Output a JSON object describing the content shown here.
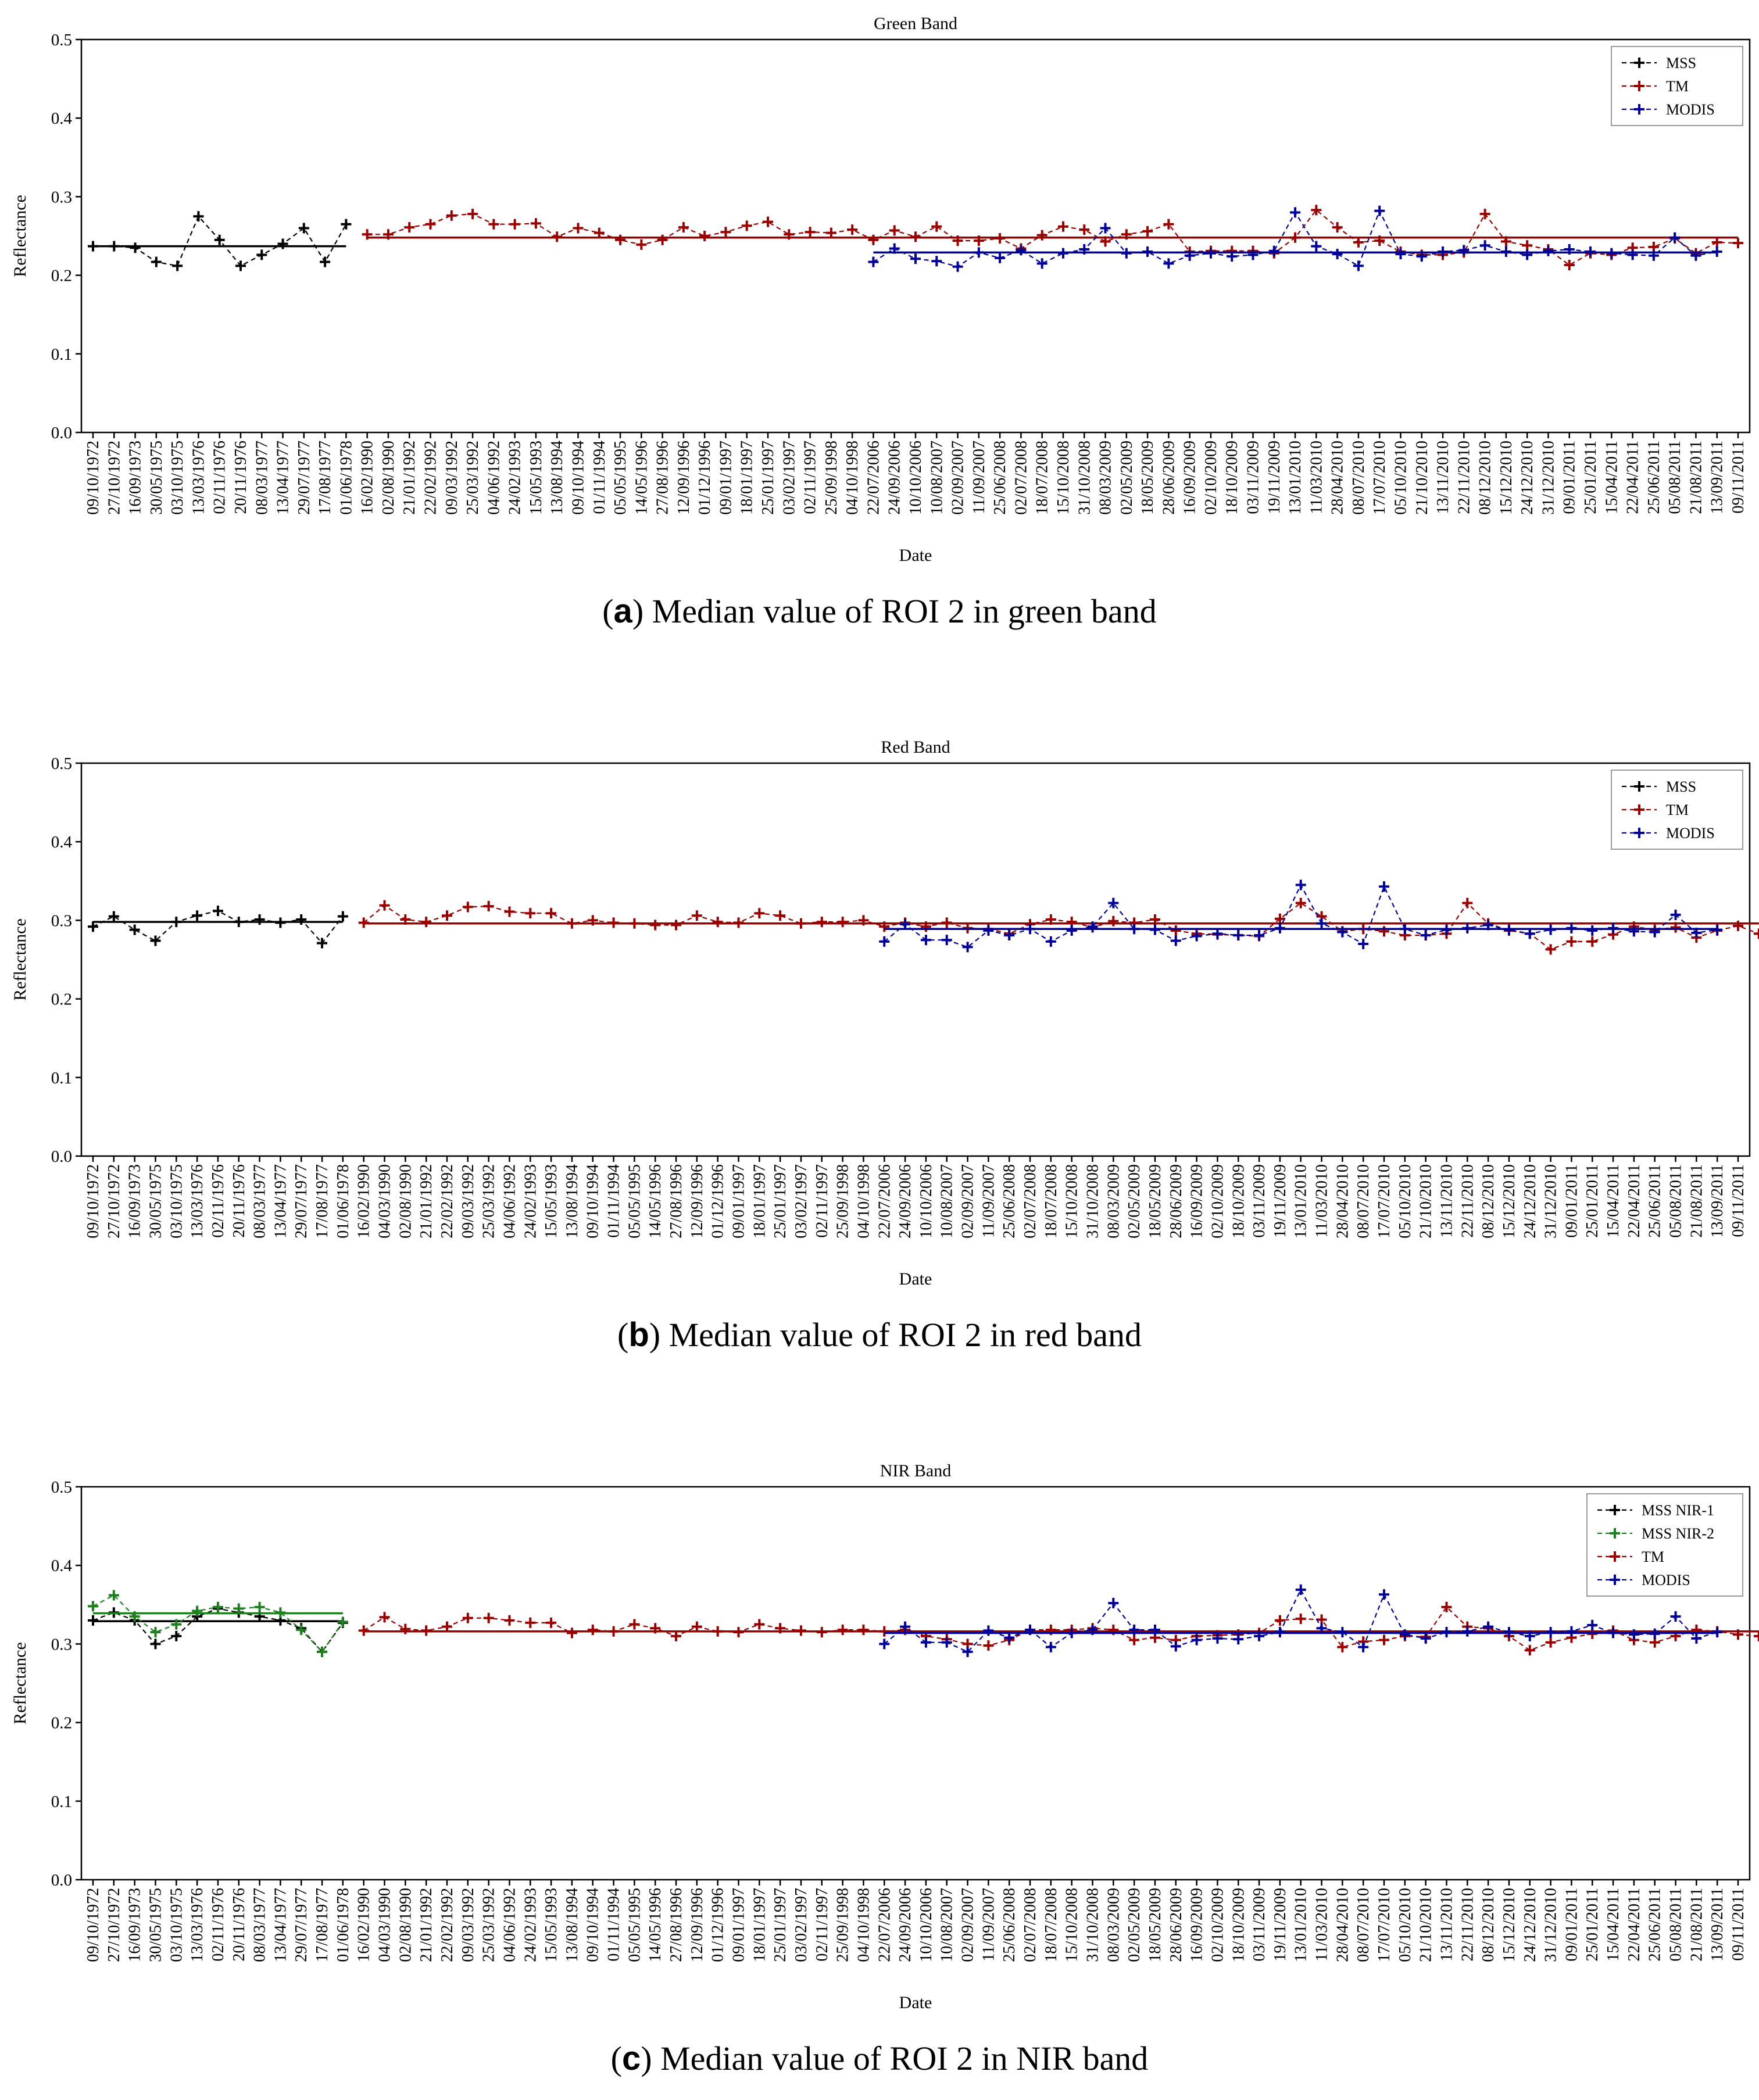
{
  "colors": {
    "mss": "#000000",
    "mss2": "#1f7f1f",
    "tm": "#990000",
    "modis": "#000099",
    "axis": "#000000"
  },
  "icons": {
    "marker": "plus-marker-icon"
  },
  "charts": [
    {
      "title": "Green Band",
      "caption_letter": "a",
      "caption_text": "Median value of ROI 2 in green band",
      "xlabel": "Date",
      "ylabel": "Reflectance",
      "legend": [
        "MSS",
        "TM",
        "MODIS"
      ]
    },
    {
      "title": "Red Band",
      "caption_letter": "b",
      "caption_text": "Median value of ROI 2 in red band",
      "xlabel": "Date",
      "ylabel": "Reflectance",
      "legend": [
        "MSS",
        "TM",
        "MODIS"
      ]
    },
    {
      "title": "NIR Band",
      "caption_letter": "c",
      "caption_text": "Median value of ROI 2 in NIR band",
      "xlabel": "Date",
      "ylabel": "Reflectance",
      "legend": [
        "MSS NIR-1",
        "MSS NIR-2",
        "TM",
        "MODIS"
      ]
    }
  ],
  "chart_data": [
    {
      "type": "line",
      "title": "Green Band",
      "xlabel": "Date",
      "ylabel": "Reflectance",
      "ylim": [
        0,
        0.5
      ],
      "yticks": [
        "0.0",
        "0.1",
        "0.2",
        "0.3",
        "0.4",
        "0.5"
      ],
      "legend_position": "top-right",
      "x_tick_labels": [
        "09/10/1972",
        "27/10/1972",
        "16/09/1973",
        "30/05/1975",
        "03/10/1975",
        "13/03/1976",
        "02/11/1976",
        "20/11/1976",
        "08/03/1977",
        "13/04/1977",
        "29/07/1977",
        "17/08/1977",
        "01/06/1978",
        "16/02/1990",
        "02/08/1990",
        "21/01/1992",
        "22/02/1992",
        "09/03/1992",
        "25/03/1992",
        "04/06/1992",
        "24/02/1993",
        "15/05/1993",
        "13/08/1994",
        "09/10/1994",
        "01/11/1994",
        "05/05/1995",
        "14/05/1996",
        "27/08/1996",
        "12/09/1996",
        "01/12/1996",
        "09/01/1997",
        "18/01/1997",
        "25/01/1997",
        "03/02/1997",
        "02/11/1997",
        "25/09/1998",
        "04/10/1998",
        "22/07/2006",
        "24/09/2006",
        "10/10/2006",
        "10/08/2007",
        "02/09/2007",
        "11/09/2007",
        "25/06/2008",
        "02/07/2008",
        "18/07/2008",
        "15/10/2008",
        "31/10/2008",
        "08/03/2009",
        "02/05/2009",
        "18/05/2009",
        "28/06/2009",
        "16/09/2009",
        "02/10/2009",
        "18/10/2009",
        "03/11/2009",
        "19/11/2009",
        "13/01/2010",
        "11/03/2010",
        "28/04/2010",
        "08/07/2010",
        "17/07/2010",
        "05/10/2010",
        "21/10/2010",
        "13/11/2010",
        "22/11/2010",
        "08/12/2010",
        "15/12/2010",
        "24/12/2010",
        "31/12/2010",
        "09/01/2011",
        "25/01/2011",
        "15/04/2011",
        "22/04/2011",
        "25/06/2011",
        "05/08/2011",
        "21/08/2011",
        "13/09/2011",
        "09/11/2011"
      ],
      "series": [
        {
          "name": "MSS",
          "color": "#000000",
          "start": 0,
          "mean": 0.237,
          "values": [
            0.237,
            0.237,
            0.235,
            0.217,
            0.212,
            0.275,
            0.245,
            0.212,
            0.226,
            0.24,
            0.26,
            0.217,
            0.265
          ]
        },
        {
          "name": "TM",
          "color": "#990000",
          "start": 13,
          "mean": 0.248,
          "values": [
            0.252,
            0.252,
            0.261,
            0.265,
            0.276,
            0.278,
            0.265,
            0.265,
            0.266,
            0.249,
            0.26,
            0.254,
            0.245,
            0.239,
            0.245,
            0.261,
            0.25,
            0.255,
            0.263,
            0.268,
            0.252,
            0.255,
            0.254,
            0.258,
            0.245,
            0.257,
            0.249,
            0.262,
            0.244,
            0.244,
            0.247,
            0.234,
            0.251,
            0.262,
            0.258,
            0.243,
            0.252,
            0.256,
            0.265,
            0.23,
            0.231,
            0.231,
            0.231,
            0.228,
            0.248,
            0.283,
            0.261,
            0.242,
            0.244,
            0.23,
            0.226,
            0.226,
            0.229,
            0.278,
            0.243,
            0.238,
            0.233,
            0.213,
            0.228,
            0.226,
            0.235,
            0.236,
            0.247,
            0.228,
            0.242,
            0.241
          ]
        },
        {
          "name": "MODIS",
          "color": "#000099",
          "start": 37,
          "mean": 0.229,
          "values": [
            0.217,
            0.234,
            0.221,
            0.218,
            0.211,
            0.229,
            0.222,
            0.232,
            0.215,
            0.228,
            0.233,
            0.26,
            0.228,
            0.23,
            0.215,
            0.225,
            0.228,
            0.224,
            0.226,
            0.231,
            0.28,
            0.237,
            0.227,
            0.212,
            0.282,
            0.227,
            0.224,
            0.23,
            0.232,
            0.238,
            0.23,
            0.226,
            0.231,
            0.233,
            0.23,
            0.228,
            0.226,
            0.225,
            0.248,
            0.225,
            0.23
          ]
        }
      ]
    },
    {
      "type": "line",
      "title": "Red Band",
      "xlabel": "Date",
      "ylabel": "Reflectance",
      "ylim": [
        0,
        0.5
      ],
      "yticks": [
        "0.0",
        "0.1",
        "0.2",
        "0.3",
        "0.4",
        "0.5"
      ],
      "legend_position": "top-right",
      "x_tick_labels": [
        "09/10/1972",
        "27/10/1972",
        "16/09/1973",
        "30/05/1975",
        "03/10/1975",
        "13/03/1976",
        "02/11/1976",
        "20/11/1976",
        "08/03/1977",
        "13/04/1977",
        "29/07/1977",
        "17/08/1977",
        "01/06/1978",
        "16/02/1990",
        "04/03/1990",
        "02/08/1990",
        "21/01/1992",
        "22/02/1992",
        "09/03/1992",
        "25/03/1992",
        "04/06/1992",
        "24/02/1993",
        "15/05/1993",
        "13/08/1994",
        "09/10/1994",
        "01/11/1994",
        "05/05/1995",
        "14/05/1996",
        "27/08/1996",
        "12/09/1996",
        "01/12/1996",
        "09/01/1997",
        "18/01/1997",
        "25/01/1997",
        "03/02/1997",
        "02/11/1997",
        "25/09/1998",
        "04/10/1998",
        "22/07/2006",
        "24/09/2006",
        "10/10/2006",
        "10/08/2007",
        "02/09/2007",
        "11/09/2007",
        "25/06/2008",
        "02/07/2008",
        "18/07/2008",
        "15/10/2008",
        "31/10/2008",
        "08/03/2009",
        "02/05/2009",
        "18/05/2009",
        "28/06/2009",
        "16/09/2009",
        "02/10/2009",
        "18/10/2009",
        "03/11/2009",
        "19/11/2009",
        "13/01/2010",
        "11/03/2010",
        "28/04/2010",
        "08/07/2010",
        "17/07/2010",
        "05/10/2010",
        "21/10/2010",
        "13/11/2010",
        "22/11/2010",
        "08/12/2010",
        "15/12/2010",
        "24/12/2010",
        "31/12/2010",
        "09/01/2011",
        "25/01/2011",
        "15/04/2011",
        "22/04/2011",
        "25/06/2011",
        "05/08/2011",
        "21/08/2011",
        "13/09/2011",
        "09/11/2011"
      ],
      "series": [
        {
          "name": "MSS",
          "color": "#000000",
          "start": 0,
          "mean": 0.298,
          "values": [
            0.292,
            0.305,
            0.288,
            0.274,
            0.298,
            0.306,
            0.312,
            0.298,
            0.301,
            0.297,
            0.301,
            0.271,
            0.305
          ]
        },
        {
          "name": "TM",
          "color": "#990000",
          "start": 13,
          "mean": 0.296,
          "values": [
            0.297,
            0.319,
            0.301,
            0.298,
            0.306,
            0.317,
            0.318,
            0.311,
            0.309,
            0.309,
            0.296,
            0.3,
            0.297,
            0.296,
            0.294,
            0.294,
            0.306,
            0.298,
            0.297,
            0.309,
            0.306,
            0.296,
            0.298,
            0.298,
            0.3,
            0.292,
            0.297,
            0.292,
            0.297,
            0.29,
            0.289,
            0.283,
            0.295,
            0.301,
            0.298,
            0.291,
            0.299,
            0.297,
            0.301,
            0.287,
            0.283,
            0.282,
            0.281,
            0.28,
            0.302,
            0.322,
            0.305,
            0.286,
            0.289,
            0.286,
            0.281,
            0.281,
            0.283,
            0.322,
            0.296,
            0.287,
            0.283,
            0.263,
            0.273,
            0.273,
            0.282,
            0.292,
            0.288,
            0.291,
            0.278,
            0.287,
            0.293,
            0.283
          ]
        },
        {
          "name": "MODIS",
          "color": "#000099",
          "start": 38,
          "mean": 0.289,
          "values": [
            0.273,
            0.295,
            0.275,
            0.275,
            0.266,
            0.287,
            0.281,
            0.289,
            0.273,
            0.287,
            0.292,
            0.322,
            0.289,
            0.288,
            0.274,
            0.28,
            0.283,
            0.281,
            0.281,
            0.29,
            0.345,
            0.296,
            0.285,
            0.27,
            0.343,
            0.289,
            0.281,
            0.288,
            0.29,
            0.294,
            0.288,
            0.283,
            0.288,
            0.29,
            0.287,
            0.29,
            0.286,
            0.285,
            0.307,
            0.284,
            0.288
          ]
        }
      ]
    },
    {
      "type": "line",
      "title": "NIR Band",
      "xlabel": "Date",
      "ylabel": "Reflectance",
      "ylim": [
        0,
        0.5
      ],
      "yticks": [
        "0.0",
        "0.1",
        "0.2",
        "0.3",
        "0.4",
        "0.5"
      ],
      "legend_position": "top-right",
      "x_tick_labels": [
        "09/10/1972",
        "27/10/1972",
        "16/09/1973",
        "30/05/1975",
        "03/10/1975",
        "13/03/1976",
        "02/11/1976",
        "20/11/1976",
        "08/03/1977",
        "13/04/1977",
        "29/07/1977",
        "17/08/1977",
        "01/06/1978",
        "16/02/1990",
        "04/03/1990",
        "02/08/1990",
        "21/01/1992",
        "22/02/1992",
        "09/03/1992",
        "25/03/1992",
        "04/06/1992",
        "24/02/1993",
        "15/05/1993",
        "13/08/1994",
        "09/10/1994",
        "01/11/1994",
        "05/05/1995",
        "14/05/1996",
        "27/08/1996",
        "12/09/1996",
        "01/12/1996",
        "09/01/1997",
        "18/01/1997",
        "25/01/1997",
        "03/02/1997",
        "02/11/1997",
        "25/09/1998",
        "04/10/1998",
        "22/07/2006",
        "24/09/2006",
        "10/10/2006",
        "10/08/2007",
        "02/09/2007",
        "11/09/2007",
        "25/06/2008",
        "02/07/2008",
        "18/07/2008",
        "15/10/2008",
        "31/10/2008",
        "08/03/2009",
        "02/05/2009",
        "18/05/2009",
        "28/06/2009",
        "16/09/2009",
        "02/10/2009",
        "18/10/2009",
        "03/11/2009",
        "19/11/2009",
        "13/01/2010",
        "11/03/2010",
        "28/04/2010",
        "08/07/2010",
        "17/07/2010",
        "05/10/2010",
        "21/10/2010",
        "13/11/2010",
        "22/11/2010",
        "08/12/2010",
        "15/12/2010",
        "24/12/2010",
        "31/12/2010",
        "09/01/2011",
        "25/01/2011",
        "15/04/2011",
        "22/04/2011",
        "25/06/2011",
        "05/08/2011",
        "21/08/2011",
        "13/09/2011",
        "09/11/2011"
      ],
      "series": [
        {
          "name": "MSS NIR-1",
          "color": "#000000",
          "start": 0,
          "mean": 0.329,
          "values": [
            0.33,
            0.34,
            0.33,
            0.3,
            0.31,
            0.335,
            0.345,
            0.34,
            0.335,
            0.33,
            0.32,
            0.29,
            0.327
          ]
        },
        {
          "name": "MSS NIR-2",
          "color": "#1f7f1f",
          "start": 0,
          "mean": 0.339,
          "values": [
            0.348,
            0.362,
            0.335,
            0.315,
            0.325,
            0.342,
            0.347,
            0.345,
            0.347,
            0.34,
            0.318,
            0.29,
            0.328
          ]
        },
        {
          "name": "TM",
          "color": "#990000",
          "start": 13,
          "mean": 0.316,
          "values": [
            0.317,
            0.334,
            0.319,
            0.317,
            0.322,
            0.333,
            0.333,
            0.33,
            0.327,
            0.327,
            0.314,
            0.318,
            0.316,
            0.325,
            0.32,
            0.31,
            0.322,
            0.316,
            0.315,
            0.325,
            0.32,
            0.317,
            0.315,
            0.318,
            0.318,
            0.316,
            0.318,
            0.31,
            0.306,
            0.3,
            0.298,
            0.305,
            0.318,
            0.318,
            0.318,
            0.32,
            0.318,
            0.305,
            0.308,
            0.305,
            0.31,
            0.311,
            0.312,
            0.314,
            0.33,
            0.332,
            0.331,
            0.296,
            0.303,
            0.305,
            0.31,
            0.309,
            0.347,
            0.322,
            0.32,
            0.31,
            0.292,
            0.302,
            0.308,
            0.313,
            0.317,
            0.305,
            0.302,
            0.31,
            0.318,
            0.316,
            0.312,
            0.31
          ]
        },
        {
          "name": "MODIS",
          "color": "#000099",
          "start": 38,
          "mean": 0.314,
          "values": [
            0.3,
            0.322,
            0.302,
            0.302,
            0.29,
            0.317,
            0.308,
            0.318,
            0.296,
            0.314,
            0.318,
            0.352,
            0.318,
            0.318,
            0.297,
            0.305,
            0.307,
            0.306,
            0.31,
            0.315,
            0.369,
            0.32,
            0.315,
            0.296,
            0.363,
            0.312,
            0.307,
            0.315,
            0.316,
            0.322,
            0.315,
            0.31,
            0.315,
            0.316,
            0.324,
            0.314,
            0.312,
            0.313,
            0.335,
            0.307,
            0.315
          ]
        }
      ]
    }
  ]
}
